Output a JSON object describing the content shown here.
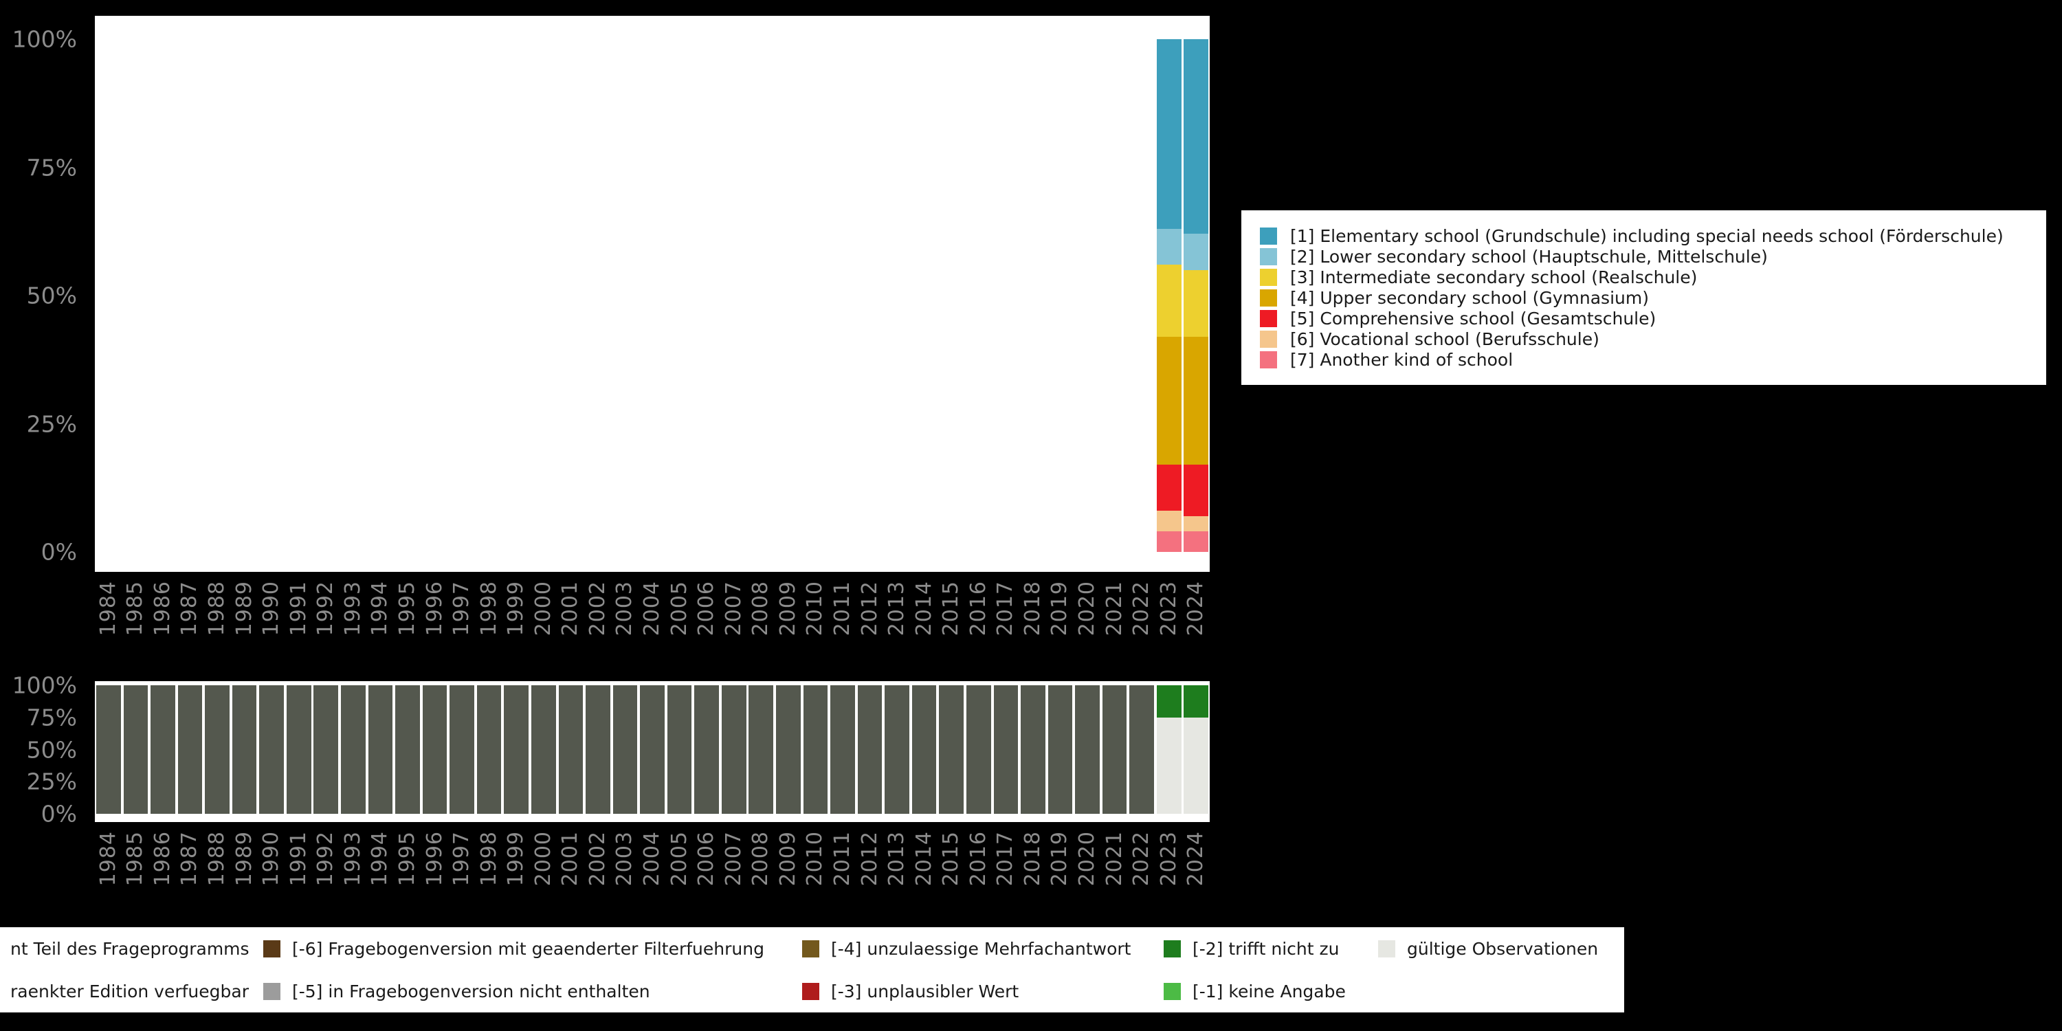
{
  "background": "#000000",
  "axis_text_color": "#8c8c8c",
  "chart_data": [
    {
      "type": "bar",
      "stacked": true,
      "unit": "percent",
      "title": "",
      "xlabel": "",
      "ylabel": "",
      "ylim": [
        0,
        100
      ],
      "grid": false,
      "legend_position": "right",
      "y_ticks": [
        "100%",
        "75%",
        "50%",
        "25%",
        "0%"
      ],
      "categories": [
        "1984",
        "1985",
        "1986",
        "1987",
        "1988",
        "1989",
        "1990",
        "1991",
        "1992",
        "1993",
        "1994",
        "1995",
        "1996",
        "1997",
        "1998",
        "1999",
        "2000",
        "2001",
        "2002",
        "2003",
        "2004",
        "2005",
        "2006",
        "2007",
        "2008",
        "2009",
        "2010",
        "2011",
        "2012",
        "2013",
        "2014",
        "2015",
        "2016",
        "2017",
        "2018",
        "2019",
        "2020",
        "2021",
        "2022",
        "2023",
        "2024"
      ],
      "series": [
        {
          "name": "[1] Elementary school (Grundschule) including special needs school (Förderschule)",
          "color": "#3d9fbc"
        },
        {
          "name": "[2] Lower secondary school (Hauptschule, Mittelschule)",
          "color": "#85c4d6"
        },
        {
          "name": "[3] Intermediate secondary school (Realschule)",
          "color": "#edd02f"
        },
        {
          "name": "[4] Upper secondary school (Gymnasium)",
          "color": "#d9a600"
        },
        {
          "name": "[5] Comprehensive school (Gesamtschule)",
          "color": "#ee1b24"
        },
        {
          "name": "[6] Vocational school (Berufsschule)",
          "color": "#f5c68c"
        },
        {
          "name": "[7] Another kind of school",
          "color": "#f4717f"
        }
      ],
      "bars": {
        "2023": [
          37,
          7,
          14,
          25,
          9,
          4,
          4
        ],
        "2024": [
          38,
          7,
          13,
          25,
          10,
          3,
          4
        ]
      }
    },
    {
      "type": "bar",
      "stacked": true,
      "unit": "percent",
      "title": "",
      "xlabel": "",
      "ylabel": "",
      "ylim": [
        0,
        100
      ],
      "grid": false,
      "legend_position": "bottom",
      "y_ticks": [
        "100%",
        "75%",
        "50%",
        "25%",
        "0%"
      ],
      "categories": [
        "1984",
        "1985",
        "1986",
        "1987",
        "1988",
        "1989",
        "1990",
        "1991",
        "1992",
        "1993",
        "1994",
        "1995",
        "1996",
        "1997",
        "1998",
        "1999",
        "2000",
        "2001",
        "2002",
        "2003",
        "2004",
        "2005",
        "2006",
        "2007",
        "2008",
        "2009",
        "2010",
        "2011",
        "2012",
        "2013",
        "2014",
        "2015",
        "2016",
        "2017",
        "2018",
        "2019",
        "2020",
        "2021",
        "2022",
        "2023",
        "2024"
      ],
      "segment_colors": {
        "not_in_program": "#54584e",
        "minus2_trifft_nicht_zu": "#1e7d1e",
        "valid_observations": "#e6e7e2"
      },
      "default_bar": [
        {
          "key": "not_in_program",
          "pct": 100
        }
      ],
      "bars": {
        "2023": [
          {
            "key": "minus2_trifft_nicht_zu",
            "pct": 25
          },
          {
            "key": "valid_observations",
            "pct": 75
          }
        ],
        "2024": [
          {
            "key": "minus2_trifft_nicht_zu",
            "pct": 25
          },
          {
            "key": "valid_observations",
            "pct": 75
          }
        ]
      }
    }
  ],
  "legend_missing": {
    "rows": [
      [
        {
          "label": "nt Teil des Frageprogramms",
          "color": null
        },
        {
          "label": "[-6] Fragebogenversion mit geaenderter Filterfuehrung",
          "color": "#5a3a17"
        },
        {
          "label": "[-4] unzulaessige Mehrfachantwort",
          "color": "#73591d"
        },
        {
          "label": "[-2] trifft nicht zu",
          "color": "#1e7d1e"
        },
        {
          "label": "gültige Observationen",
          "color": "#e6e7e2"
        }
      ],
      [
        {
          "label": "raenkter Edition verfuegbar",
          "color": null
        },
        {
          "label": "[-5] in Fragebogenversion nicht enthalten",
          "color": "#9c9c9c"
        },
        {
          "label": "[-3] unplausibler Wert",
          "color": "#af1c1c"
        },
        {
          "label": "[-1] keine Angabe",
          "color": "#4cbb45"
        },
        {
          "label": "",
          "color": null
        }
      ]
    ]
  }
}
